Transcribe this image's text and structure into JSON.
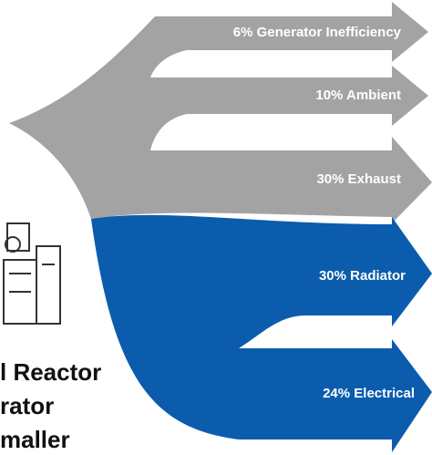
{
  "flows": [
    {
      "label": "6% Generator Inefficiency"
    },
    {
      "label": "10% Ambient"
    },
    {
      "label": "30% Exhaust"
    },
    {
      "label": "30% Radiator"
    },
    {
      "label": "24% Electrical"
    }
  ],
  "side_text": [
    "l Reactor",
    "rator",
    "maller"
  ]
}
